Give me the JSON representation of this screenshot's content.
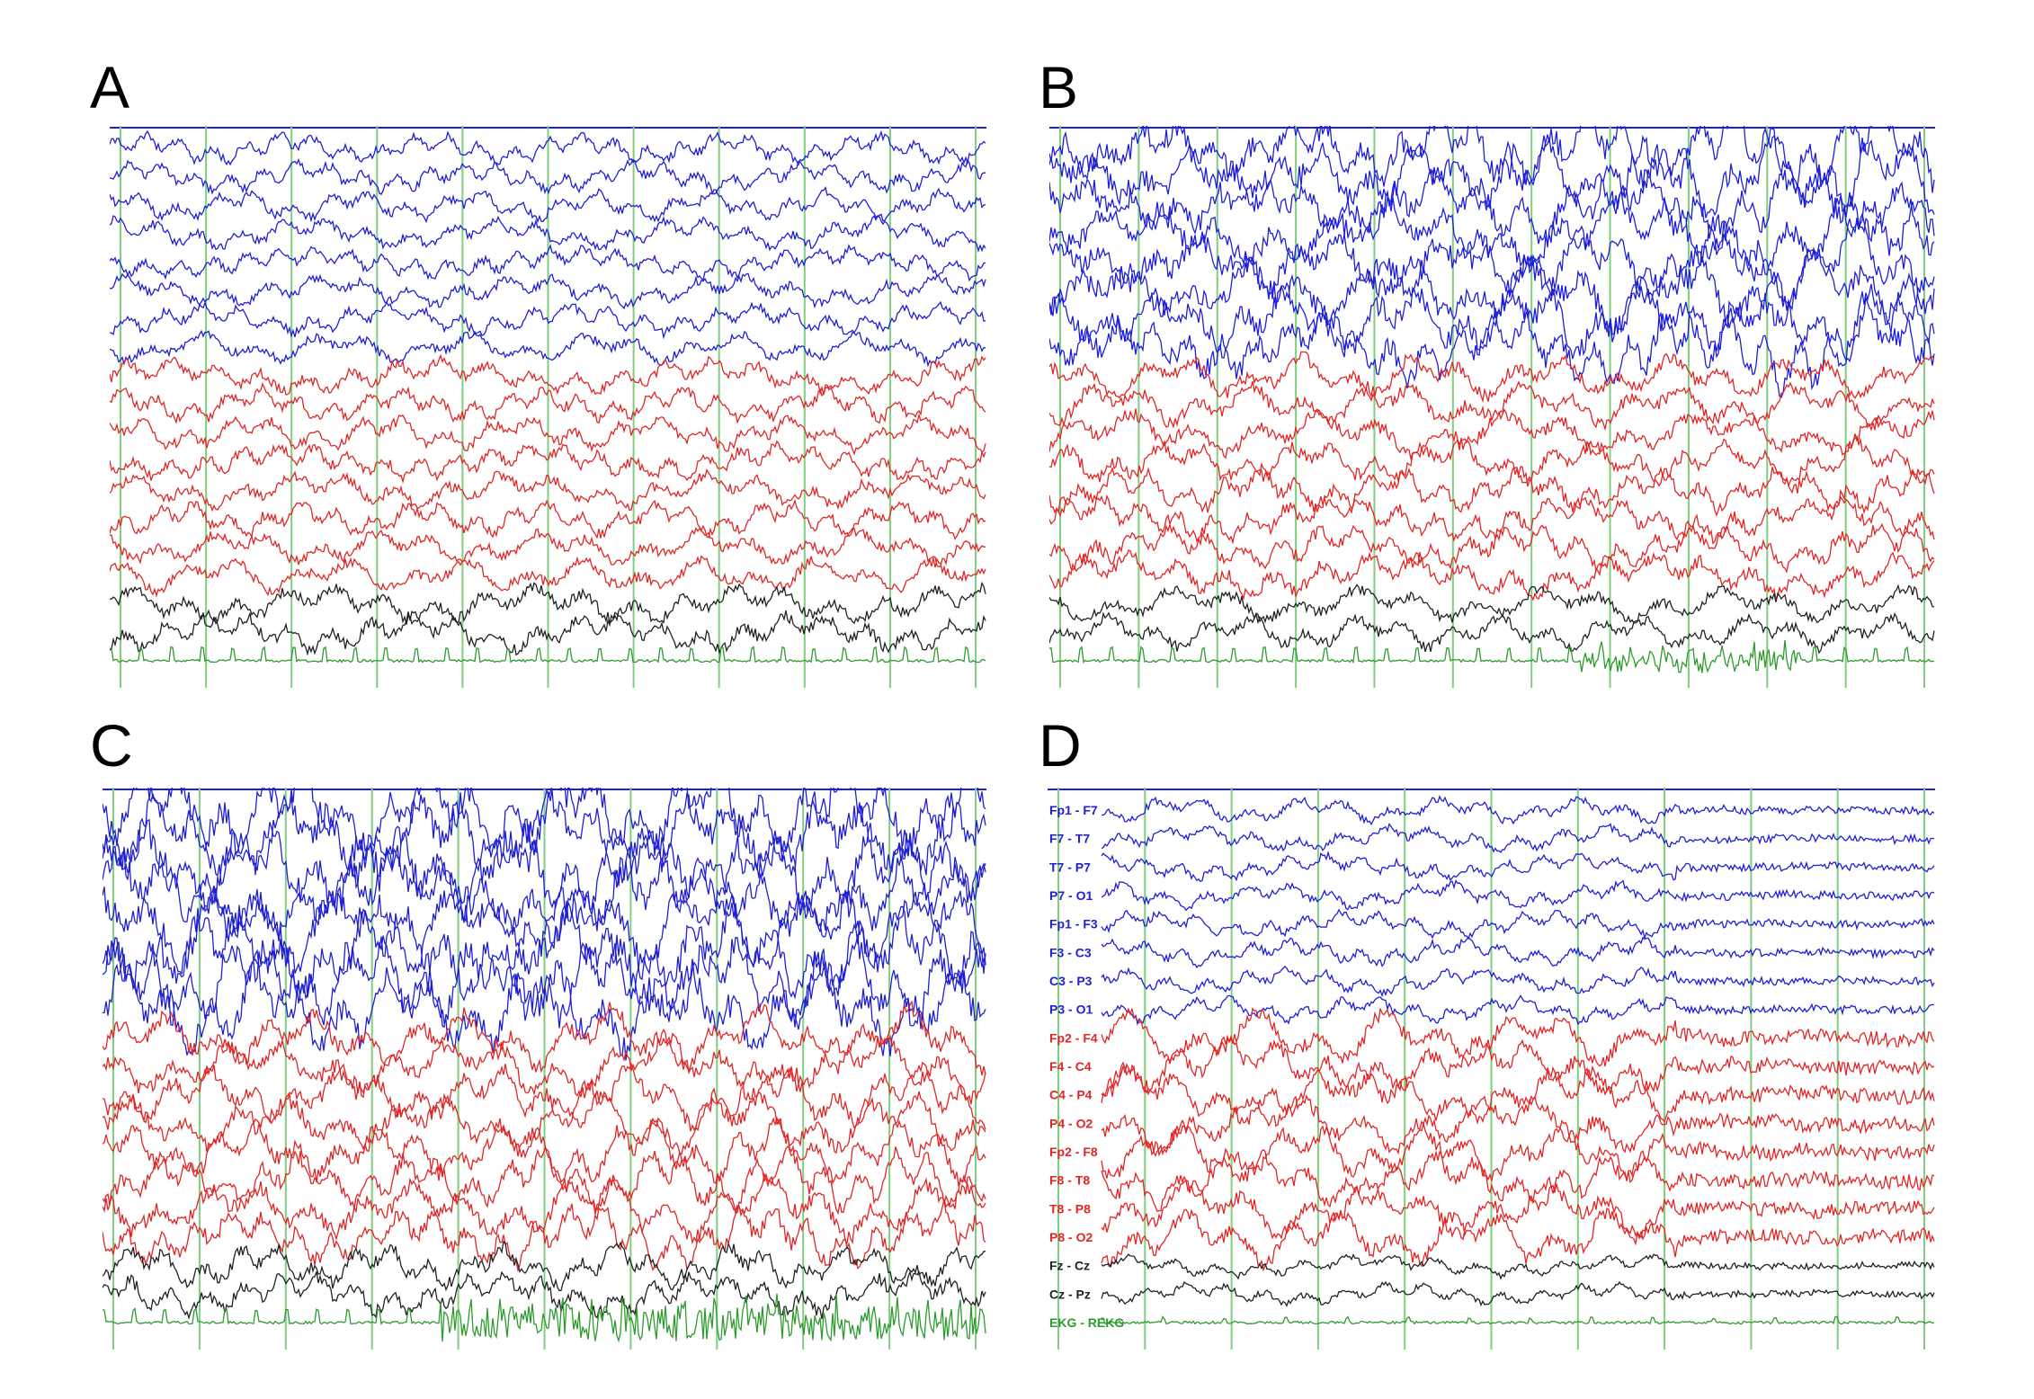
{
  "colors": {
    "blue": "#1f1fd6",
    "red": "#e02626",
    "black": "#222222",
    "green": "#2e9b2e",
    "grid": "#7fcf7f",
    "top_line": "#1f1fd6"
  },
  "figure": {
    "panels": [
      {
        "id": "A",
        "letter": "A",
        "activity": "moderate",
        "gridlines": 11,
        "blue_amp": 14,
        "red_amp": 16,
        "black_amp": 18,
        "ekg": "spikes",
        "labels": []
      },
      {
        "id": "B",
        "letter": "B",
        "activity": "high",
        "gridlines": 12,
        "blue_amp": 34,
        "red_amp": 20,
        "black_amp": 16,
        "ekg": "spikes-burst",
        "labels": []
      },
      {
        "id": "C",
        "letter": "C",
        "activity": "very-high",
        "gridlines": 11,
        "blue_amp": 42,
        "red_amp": 24,
        "black_amp": 20,
        "ekg": "noisy",
        "labels": []
      },
      {
        "id": "D",
        "letter": "D",
        "activity": "suppression",
        "gridlines": 11,
        "blue_amp": 12,
        "red_amp": 22,
        "black_amp": 10,
        "ekg": "flat",
        "labels": [
          "Fp1 - F7",
          "F7 - T7",
          "T7 - P7",
          "P7 - O1",
          "Fp1 - F3",
          "F3 - C3",
          "C3 - P3",
          "P3 - O1",
          "Fp2 - F4",
          "F4 - C4",
          "C4 - P4",
          "P4 - O2",
          "Fp2 - F8",
          "F8 - T8",
          "T8 - P8",
          "P8 - O2",
          "Fz - Cz",
          "Cz - Pz",
          "EKG - REKG"
        ]
      }
    ]
  }
}
